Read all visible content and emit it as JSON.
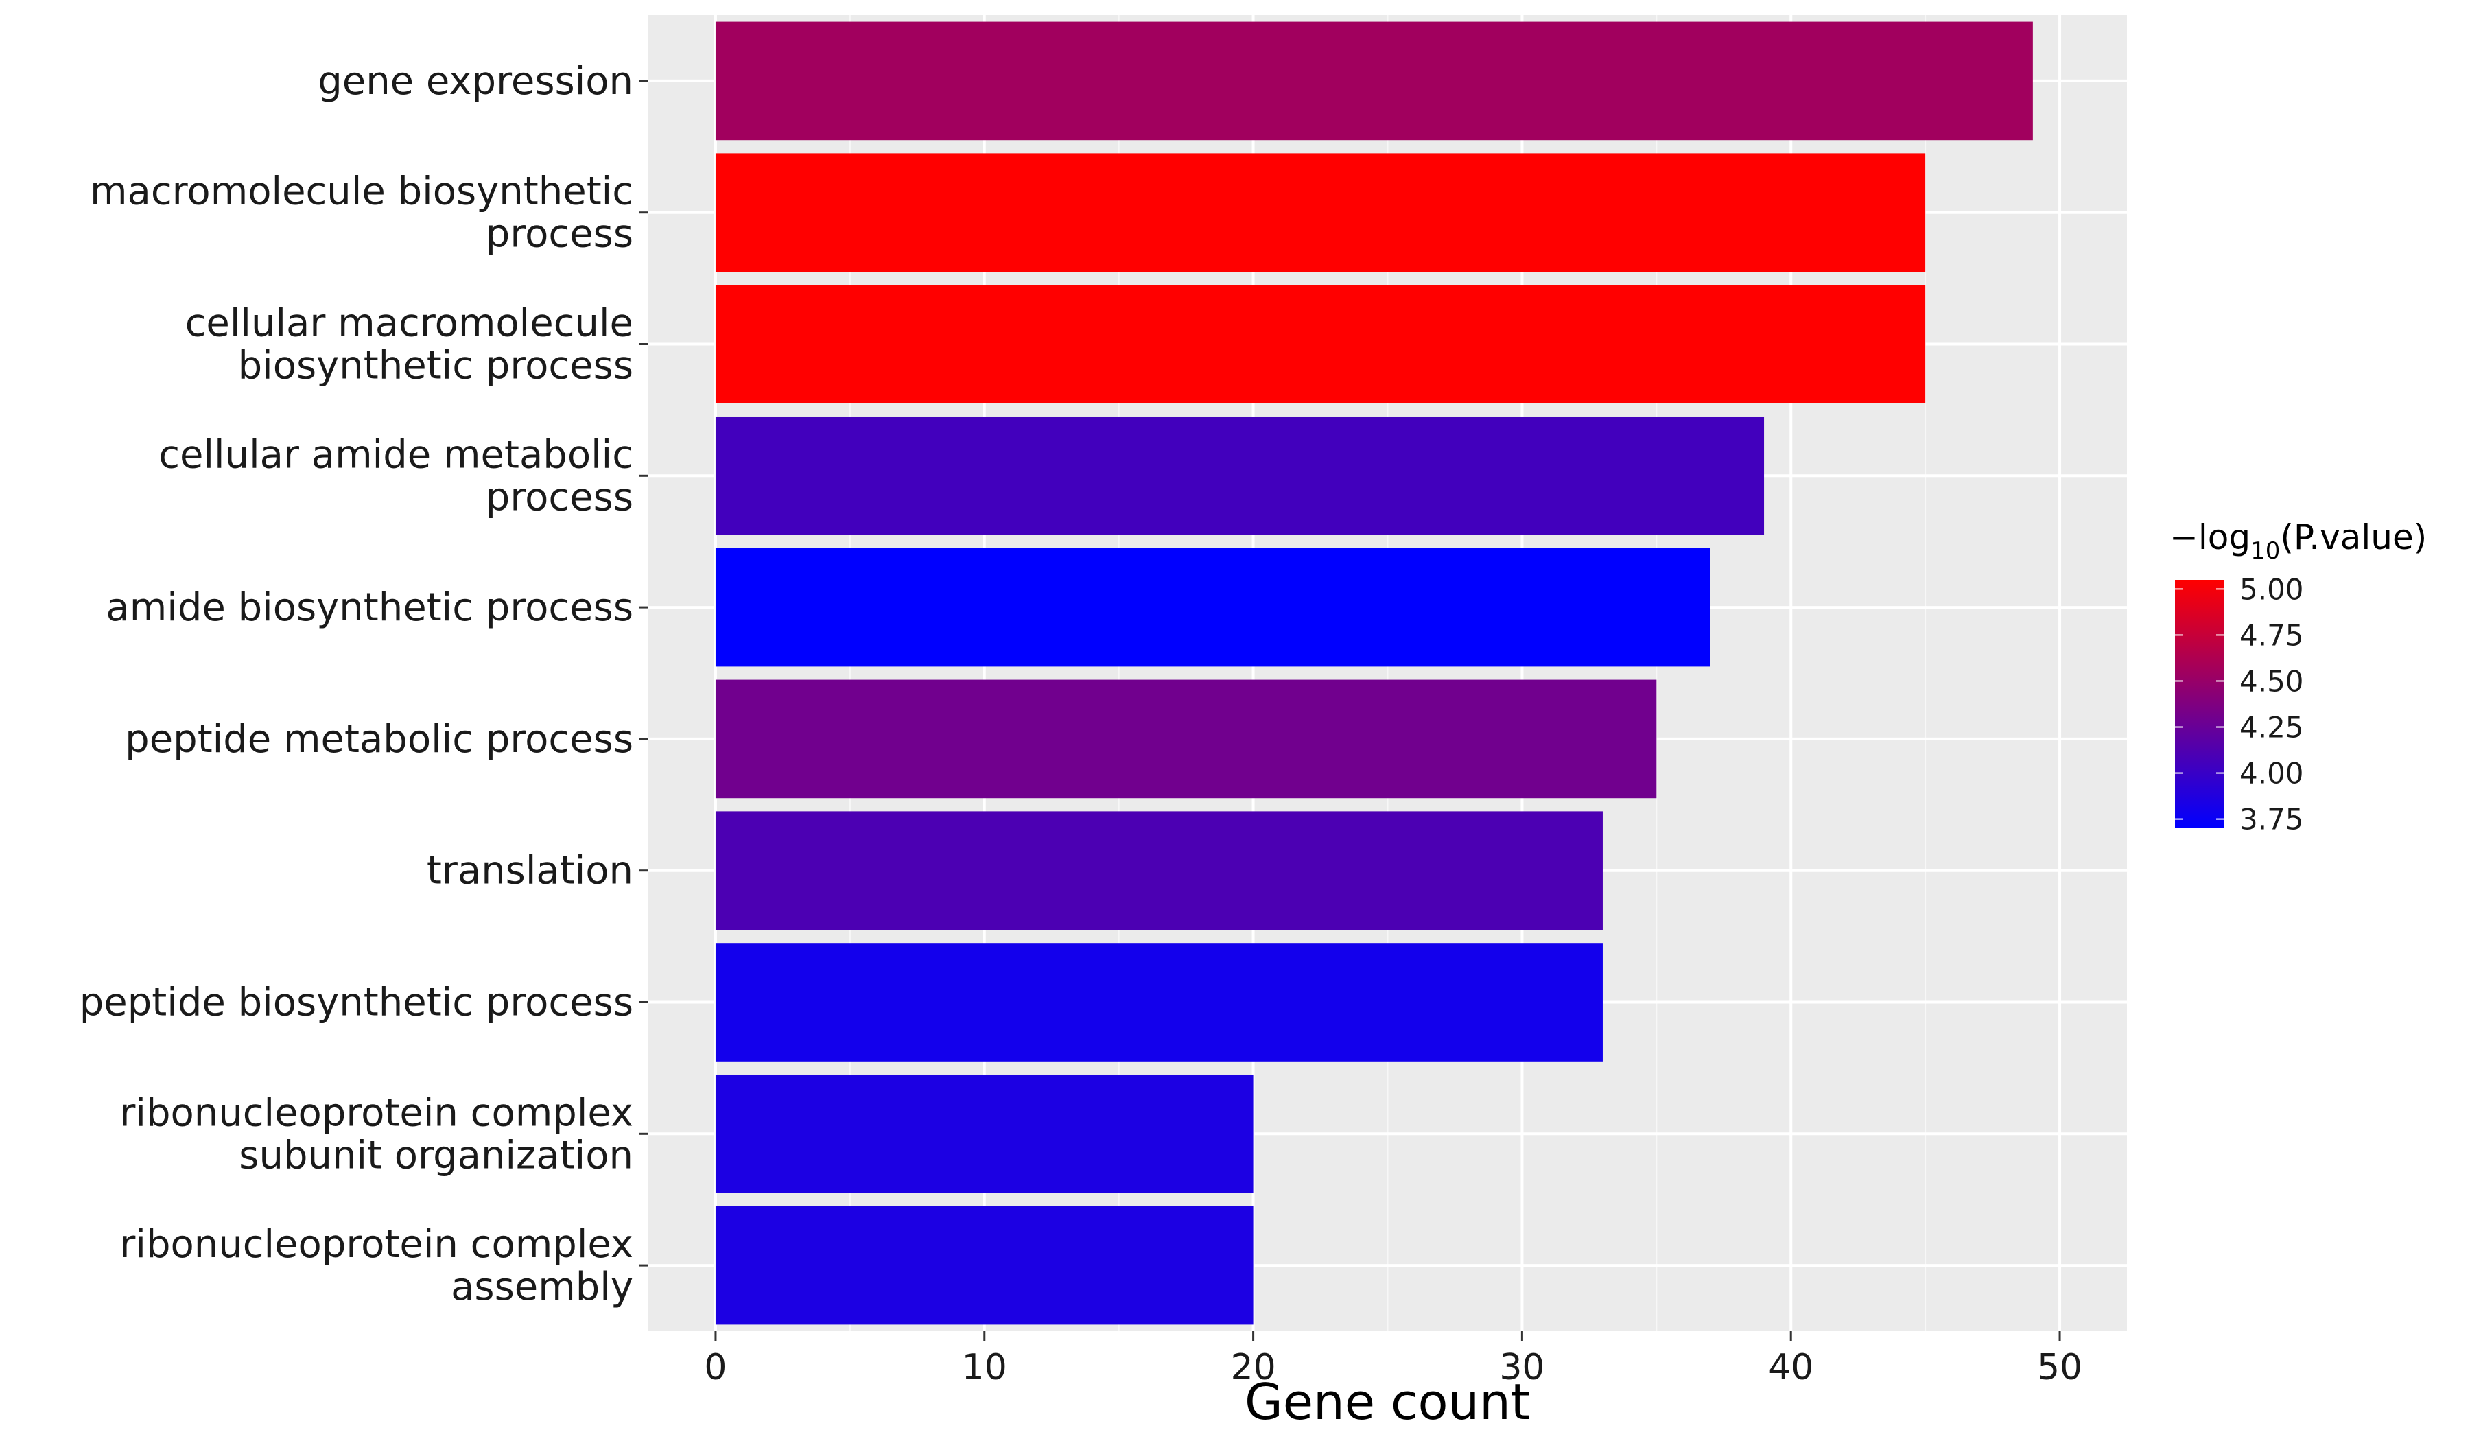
{
  "chart_data": {
    "type": "bar",
    "orientation": "horizontal",
    "categories": [
      "gene expression",
      "macromolecule biosynthetic process",
      "cellular macromolecule biosynthetic process",
      "cellular amide metabolic process",
      "amide biosynthetic process",
      "peptide metabolic process",
      "translation",
      "peptide biosynthetic process",
      "ribonucleoprotein complex subunit organization",
      "ribonucleoprotein complex assembly"
    ],
    "category_lines": [
      [
        "gene expression"
      ],
      [
        "macromolecule biosynthetic",
        "process"
      ],
      [
        "cellular macromolecule",
        "biosynthetic process"
      ],
      [
        "cellular amide metabolic",
        "process"
      ],
      [
        "amide biosynthetic process"
      ],
      [
        "peptide metabolic process"
      ],
      [
        "translation"
      ],
      [
        "peptide biosynthetic process"
      ],
      [
        "ribonucleoprotein complex",
        "subunit organization"
      ],
      [
        "ribonucleoprotein complex",
        "assembly"
      ]
    ],
    "values": [
      49,
      45,
      45,
      39,
      37,
      35,
      33,
      33,
      20,
      20
    ],
    "color_values": [
      4.55,
      5.05,
      5.05,
      4.05,
      3.7,
      4.3,
      4.1,
      3.8,
      3.85,
      3.85
    ],
    "xlabel": "Gene count",
    "ylabel": "",
    "xlim": [
      -2.5,
      52.5
    ],
    "xticks": [
      "0",
      "10",
      "20",
      "30",
      "40",
      "50"
    ],
    "grid": true,
    "background": "#ebebeb",
    "legend": {
      "position": "right",
      "title_prefix": "−log",
      "title_sub": "10",
      "title_suffix": "(P.value)",
      "ticks": [
        "5.00",
        "4.75",
        "4.50",
        "4.25",
        "4.00",
        "3.75"
      ],
      "tick_values": [
        5.0,
        4.75,
        4.5,
        4.25,
        4.0,
        3.75
      ],
      "range": [
        3.7,
        5.05
      ],
      "color_low": "#0000ff",
      "color_high": "#ff0000"
    }
  }
}
